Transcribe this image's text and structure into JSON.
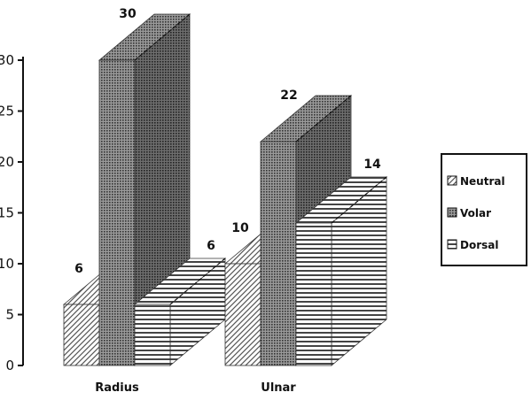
{
  "chart_data": {
    "type": "bar",
    "title": "",
    "xlabel": "",
    "ylabel": "",
    "categories": [
      "Radius",
      "Ulnar"
    ],
    "series": [
      {
        "name": "Neutral",
        "values": [
          6,
          10
        ],
        "pattern": "diagonal"
      },
      {
        "name": "Volar",
        "values": [
          30,
          22
        ],
        "pattern": "dots"
      },
      {
        "name": "Dorsal",
        "values": [
          6,
          14
        ],
        "pattern": "horizontal"
      }
    ],
    "yticks": [
      "0",
      "5",
      "10",
      "15",
      "20",
      "25",
      "30"
    ],
    "ylim": [
      0,
      30
    ],
    "legend_position": "right",
    "grid": false,
    "three_d": true
  }
}
